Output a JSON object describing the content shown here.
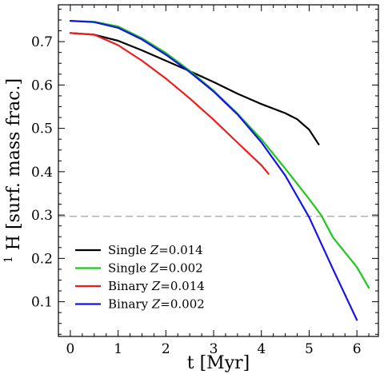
{
  "chart_data": {
    "type": "line",
    "xlabel": "t [Myr]",
    "ylabel_sup": "1",
    "ylabel_main": "H [surf. mass frac.]",
    "xlim": [
      -0.25,
      6.45
    ],
    "ylim": [
      0.02,
      0.785
    ],
    "xticks": [
      0,
      1,
      2,
      3,
      4,
      5,
      6
    ],
    "yticks": [
      0.1,
      0.2,
      0.3,
      0.4,
      0.5,
      0.6,
      0.7
    ],
    "ytick_labels": [
      "0.1",
      "0.2",
      "0.3",
      "0.4",
      "0.5",
      "0.6",
      "0.7"
    ],
    "xtick_labels": [
      "0",
      "1",
      "2",
      "3",
      "4",
      "5",
      "6"
    ],
    "hline": {
      "y": 0.297,
      "color": "#b5b5b5",
      "style": "dashed"
    },
    "legend_position": "lower-left",
    "series": [
      {
        "name": "Single",
        "z_symbol": "Z",
        "z_value": "=0.014",
        "color": "#000000",
        "x": [
          0,
          0.5,
          1,
          1.5,
          2,
          2.5,
          3,
          3.5,
          4,
          4.5,
          4.75,
          5,
          5.2
        ],
        "y": [
          0.72,
          0.716,
          0.702,
          0.68,
          0.656,
          0.632,
          0.607,
          0.58,
          0.556,
          0.535,
          0.521,
          0.497,
          0.463
        ]
      },
      {
        "name": "Single",
        "z_symbol": "Z",
        "z_value": "=0.002",
        "color": "#1ec81e",
        "x": [
          0,
          0.5,
          1,
          1.5,
          2,
          2.5,
          3,
          3.5,
          4,
          4.5,
          5,
          5.25,
          5.5,
          6,
          6.25
        ],
        "y": [
          0.748,
          0.746,
          0.735,
          0.708,
          0.674,
          0.633,
          0.587,
          0.534,
          0.475,
          0.407,
          0.337,
          0.3,
          0.248,
          0.18,
          0.132
        ]
      },
      {
        "name": "Binary",
        "z_symbol": "Z",
        "z_value": "=0.014",
        "color": "#ee1c1c",
        "x": [
          0,
          0.5,
          1,
          1.5,
          2,
          2.5,
          3,
          3.5,
          4,
          4.15
        ],
        "y": [
          0.72,
          0.716,
          0.692,
          0.656,
          0.615,
          0.569,
          0.52,
          0.467,
          0.415,
          0.395
        ]
      },
      {
        "name": "Binary",
        "z_symbol": "Z",
        "z_value": "=0.002",
        "color": "#1515e8",
        "x": [
          0,
          0.5,
          1,
          1.5,
          2,
          2.5,
          3,
          3.5,
          4,
          4.5,
          5,
          5.5,
          6
        ],
        "y": [
          0.748,
          0.745,
          0.732,
          0.705,
          0.67,
          0.63,
          0.585,
          0.532,
          0.468,
          0.391,
          0.295,
          0.175,
          0.058
        ]
      }
    ]
  }
}
